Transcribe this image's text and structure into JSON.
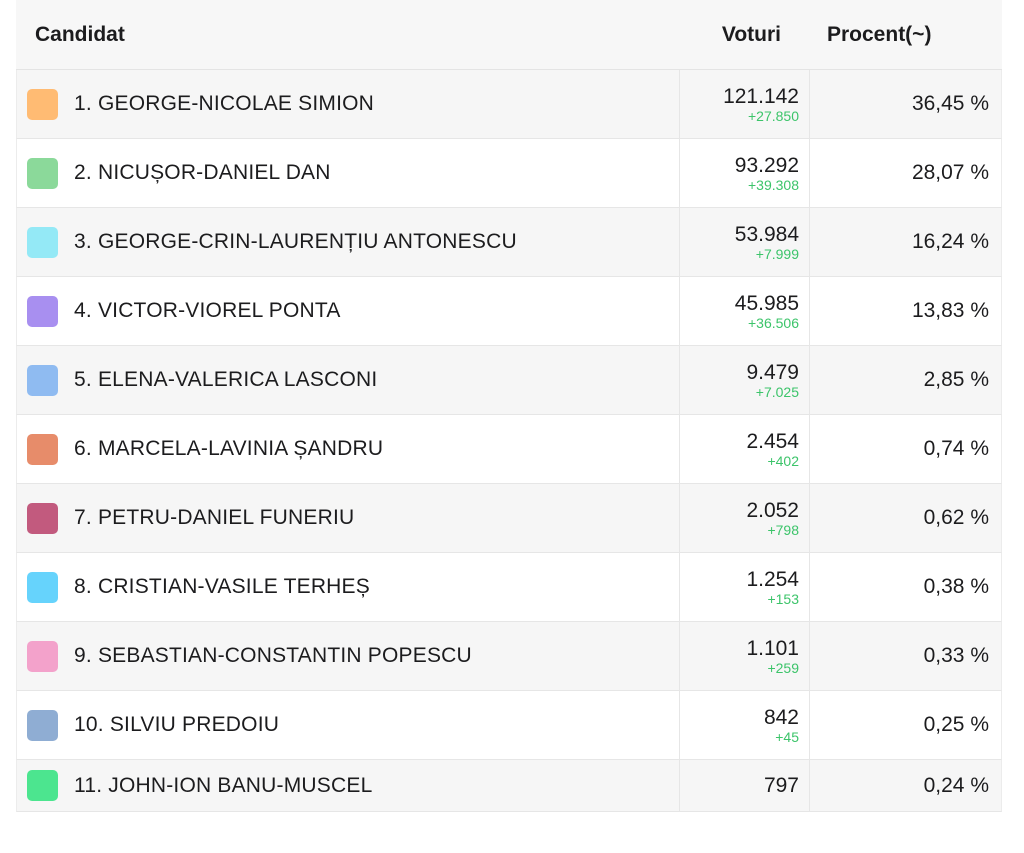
{
  "header": {
    "candidate": "Candidat",
    "votes": "Voturi",
    "percent": "Procent(~)"
  },
  "rows": [
    {
      "name": "1. GEORGE-NICOLAE SIMION",
      "votes": "121.142",
      "delta": "+27.850",
      "percent": "36,45 %",
      "color": "#ffbb73"
    },
    {
      "name": "2. NICUȘOR-DANIEL DAN",
      "votes": "93.292",
      "delta": "+39.308",
      "percent": "28,07 %",
      "color": "#8bd99a"
    },
    {
      "name": "3. GEORGE-CRIN-LAURENȚIU ANTONESCU",
      "votes": "53.984",
      "delta": "+7.999",
      "percent": "16,24 %",
      "color": "#94e9f6"
    },
    {
      "name": "4. VICTOR-VIOREL PONTA",
      "votes": "45.985",
      "delta": "+36.506",
      "percent": "13,83 %",
      "color": "#a88ff0"
    },
    {
      "name": "5. ELENA-VALERICA LASCONI",
      "votes": "9.479",
      "delta": "+7.025",
      "percent": "2,85 %",
      "color": "#8fbbf1"
    },
    {
      "name": "6. MARCELA-LAVINIA ȘANDRU",
      "votes": "2.454",
      "delta": "+402",
      "percent": "0,74 %",
      "color": "#e78c6a"
    },
    {
      "name": "7. PETRU-DANIEL FUNERIU",
      "votes": "2.052",
      "delta": "+798",
      "percent": "0,62 %",
      "color": "#c25a7e"
    },
    {
      "name": "8. CRISTIAN-VASILE TERHEȘ",
      "votes": "1.254",
      "delta": "+153",
      "percent": "0,38 %",
      "color": "#66d3fc"
    },
    {
      "name": "9. SEBASTIAN-CONSTANTIN POPESCU",
      "votes": "1.101",
      "delta": "+259",
      "percent": "0,33 %",
      "color": "#f3a2cb"
    },
    {
      "name": "10. SILVIU PREDOIU",
      "votes": "842",
      "delta": "+45",
      "percent": "0,25 %",
      "color": "#8fadd3"
    },
    {
      "name": "11. JOHN-ION BANU-MUSCEL",
      "votes": "797",
      "delta": "",
      "percent": "0,24 %",
      "color": "#4ce58f"
    }
  ]
}
